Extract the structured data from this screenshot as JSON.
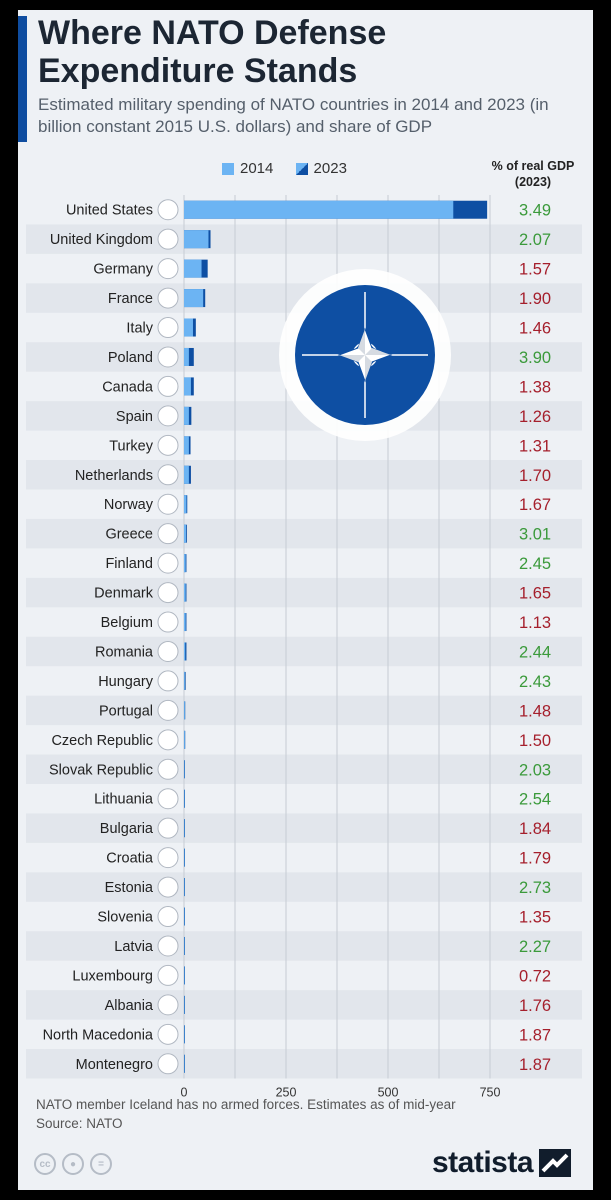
{
  "header": {
    "title": "Where NATO Defense Expenditure Stands",
    "subtitle": "Estimated military spending of NATO countries in 2014 and 2023 (in billion constant 2015 U.S. dollars) and share of GDP",
    "gdp_column_label": "% of real GDP (2023)"
  },
  "colors": {
    "bar_2014": "#6cb4f3",
    "bar_2023": "#0e4fa3",
    "gdp_high": "#3b9a3b",
    "gdp_low": "#a51f2c",
    "row_band": "#e2e6ec",
    "accent": "#0f4da0"
  },
  "chart_data": {
    "type": "bar",
    "orientation": "horizontal",
    "xlim": [
      0,
      750
    ],
    "xticks": [
      0,
      250,
      500,
      750
    ],
    "legend": [
      "2014",
      "2023"
    ],
    "legend_position": "top",
    "grid": true,
    "categories": [
      "United States",
      "United Kingdom",
      "Germany",
      "France",
      "Italy",
      "Poland",
      "Canada",
      "Spain",
      "Turkey",
      "Netherlands",
      "Norway",
      "Greece",
      "Finland",
      "Denmark",
      "Belgium",
      "Romania",
      "Hungary",
      "Portugal",
      "Czech Republic",
      "Slovak Republic",
      "Lithuania",
      "Bulgaria",
      "Croatia",
      "Estonia",
      "Slovenia",
      "Latvia",
      "Luxembourg",
      "Albania",
      "North Macedonia",
      "Montenegro"
    ],
    "series": [
      {
        "name": "2014",
        "values": [
          660,
          60,
          43,
          47,
          22,
          12,
          17,
          12,
          12,
          12,
          6,
          5,
          4,
          4,
          4,
          3,
          2,
          2,
          2,
          1,
          0.5,
          0.8,
          1,
          0.5,
          0.5,
          0.3,
          0.3,
          0.2,
          0.1,
          0.1
        ]
      },
      {
        "name": "2023",
        "values": [
          743,
          65,
          58,
          52,
          29,
          24,
          24,
          18,
          16,
          17,
          8,
          7,
          6,
          6,
          6,
          6,
          4,
          3,
          3,
          2,
          1.5,
          1.4,
          1.4,
          1.1,
          0.9,
          0.9,
          0.6,
          0.3,
          0.2,
          0.1
        ]
      }
    ],
    "gdp_share_2023": [
      "3.49",
      "2.07",
      "1.57",
      "1.90",
      "1.46",
      "3.90",
      "1.38",
      "1.26",
      "1.31",
      "1.70",
      "1.67",
      "3.01",
      "2.45",
      "1.65",
      "1.13",
      "2.44",
      "2.43",
      "1.48",
      "1.50",
      "2.03",
      "2.54",
      "1.84",
      "1.79",
      "2.73",
      "1.35",
      "2.27",
      "0.72",
      "1.76",
      "1.87",
      "1.87"
    ]
  },
  "flag_icons": [
    "us-flag-icon",
    "uk-flag-icon",
    "germany-flag-icon",
    "france-flag-icon",
    "italy-flag-icon",
    "poland-flag-icon",
    "canada-flag-icon",
    "spain-flag-icon",
    "turkey-flag-icon",
    "netherlands-flag-icon",
    "norway-flag-icon",
    "greece-flag-icon",
    "finland-flag-icon",
    "denmark-flag-icon",
    "belgium-flag-icon",
    "romania-flag-icon",
    "hungary-flag-icon",
    "portugal-flag-icon",
    "czech-flag-icon",
    "slovakia-flag-icon",
    "lithuania-flag-icon",
    "bulgaria-flag-icon",
    "croatia-flag-icon",
    "estonia-flag-icon",
    "slovenia-flag-icon",
    "latvia-flag-icon",
    "luxembourg-flag-icon",
    "albania-flag-icon",
    "north-macedonia-flag-icon",
    "montenegro-flag-icon"
  ],
  "logo_icon": "nato-compass-star-icon",
  "footer": {
    "note": "NATO member Iceland has no armed forces. Estimates as of mid-year",
    "source": "Source: NATO",
    "brand": "statista",
    "license_icons": [
      "cc-icon",
      "attribution-icon",
      "no-derivatives-icon"
    ]
  }
}
